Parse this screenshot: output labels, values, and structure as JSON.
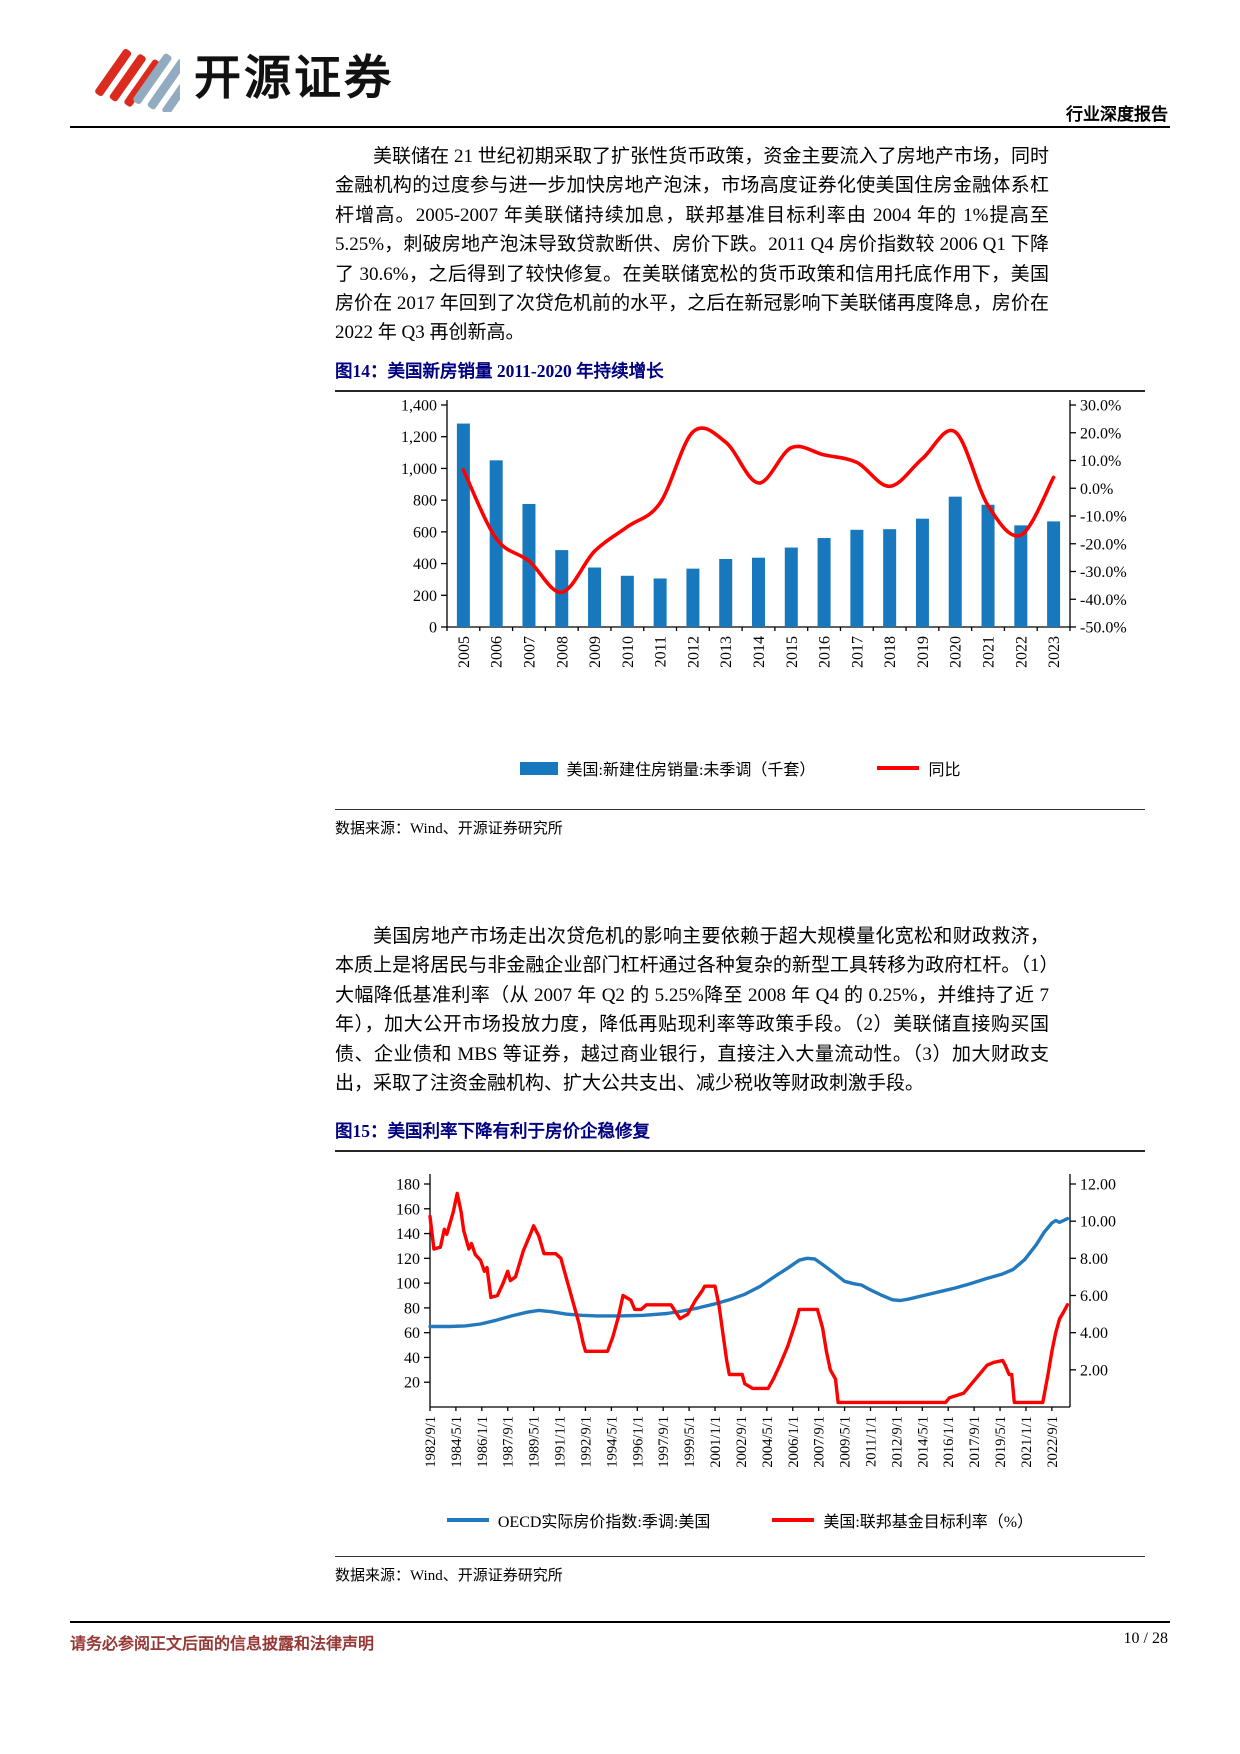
{
  "header": {
    "brand": "开源证券",
    "report_type": "行业深度报告"
  },
  "paragraph1": "美联储在 21 世纪初期采取了扩张性货币政策，资金主要流入了房地产市场，同时金融机构的过度参与进一步加快房地产泡沫，市场高度证券化使美国住房金融体系杠杆增高。2005-2007 年美联储持续加息，联邦基准目标利率由 2004 年的 1%提高至 5.25%，刺破房地产泡沫导致贷款断供、房价下跌。2011 Q4 房价指数较 2006 Q1 下降了 30.6%，之后得到了较快修复。在美联储宽松的货币政策和信用托底作用下，美国房价在 2017 年回到了次贷危机前的水平，之后在新冠影响下美联储再度降息，房价在 2022 年 Q3 再创新高。",
  "paragraph2": "美国房地产市场走出次贷危机的影响主要依赖于超大规模量化宽松和财政救济，本质上是将居民与非金融企业部门杠杆通过各种复杂的新型工具转移为政府杠杆。（1）大幅降低基准利率（从 2007 年 Q2 的 5.25%降至 2008 年 Q4 的 0.25%，并维持了近 7 年），加大公开市场投放力度，降低再贴现利率等政策手段。（2）美联储直接购买国债、企业债和 MBS 等证券，越过商业银行，直接注入大量流动性。（3）加大财政支出，采取了注资金融机构、扩大公共支出、减少税收等财政刺激手段。",
  "figure14": {
    "title_full": "图14：美国新房销量 2011-2020 年持续增长",
    "source": "数据来源：Wind、开源证券研究所"
  },
  "figure15": {
    "title_full": "图15：美国利率下降有利于房价企稳修复",
    "source": "数据来源：Wind、开源证券研究所"
  },
  "footer": {
    "disclaimer": "请务必参阅正文后面的信息披露和法律声明",
    "page": "10 / 28"
  },
  "colors": {
    "bar_blue": "#1878BE",
    "line_blue": "#2379BD",
    "line_red": "#FF0000",
    "title_navy": "#000080",
    "footer_red": "#953735",
    "logo_red": "#DB2B1E",
    "logo_gray": "#92ABC0"
  },
  "chart_data": [
    {
      "type": "bar",
      "title": "美国新房销量 2011-2020 年持续增长",
      "categories": [
        "2005",
        "2006",
        "2007",
        "2008",
        "2009",
        "2010",
        "2011",
        "2012",
        "2013",
        "2014",
        "2015",
        "2016",
        "2017",
        "2018",
        "2019",
        "2020",
        "2021",
        "2022",
        "2023"
      ],
      "series": [
        {
          "name": "美国:新建住房销量:未季调（千套）",
          "type": "bar",
          "axis": "left",
          "values": [
            1283,
            1051,
            776,
            485,
            375,
            323,
            306,
            368,
            429,
            437,
            501,
            561,
            613,
            617,
            683,
            822,
            771,
            641,
            666
          ]
        },
        {
          "name": "同比",
          "type": "line",
          "axis": "right",
          "values": [
            6.6,
            -18.1,
            -26.2,
            -37.5,
            -22.7,
            -13.9,
            -5.3,
            20.3,
            16.6,
            1.9,
            14.6,
            12.0,
            9.3,
            0.7,
            10.7,
            20.3,
            -6.2,
            -16.9,
            3.9
          ]
        }
      ],
      "left_axis": {
        "min": 0,
        "max": 1400,
        "labels": [
          "0",
          "200",
          "400",
          "600",
          "800",
          "1,000",
          "1,200",
          "1,400"
        ]
      },
      "right_axis": {
        "min": -50,
        "max": 30,
        "labels": [
          "-50.0%",
          "-40.0%",
          "-30.0%",
          "-20.0%",
          "-10.0%",
          "0.0%",
          "10.0%",
          "20.0%",
          "30.0%"
        ]
      },
      "grid": false,
      "legend_position": "bottom"
    },
    {
      "type": "line",
      "title": "美国利率下降有利于房价企稳修复",
      "x_tick_labels": [
        "1982/9/1",
        "1984/5/1",
        "1986/1/1",
        "1987/9/1",
        "1989/5/1",
        "1991/1/1",
        "1992/9/1",
        "1994/5/1",
        "1996/1/1",
        "1997/9/1",
        "1999/5/1",
        "2001/1/1",
        "2002/9/1",
        "2004/5/1",
        "2006/1/1",
        "2007/9/1",
        "2009/5/1",
        "2011/1/1",
        "2012/9/1",
        "2014/5/1",
        "2016/1/1",
        "2017/9/1",
        "2019/5/1",
        "2021/1/1",
        "2022/9/1"
      ],
      "x_months_per_tick": 20,
      "x_total_months": 494,
      "left_axis": {
        "min": 0,
        "max": 180,
        "labels": [
          "20",
          "40",
          "60",
          "80",
          "100",
          "120",
          "140",
          "160",
          "180"
        ]
      },
      "right_axis": {
        "min": 0,
        "max": 12,
        "labels": [
          "2.00",
          "4.00",
          "6.00",
          "8.00",
          "10.00",
          "12.00"
        ]
      },
      "series": [
        {
          "name": "OECD实际房价指数:季调:美国",
          "axis": "left",
          "points": [
            [
              0,
              65
            ],
            [
              15,
              65
            ],
            [
              27,
              65.5
            ],
            [
              39,
              67
            ],
            [
              51,
              70
            ],
            [
              63,
              73.5
            ],
            [
              75,
              76.5
            ],
            [
              84,
              78
            ],
            [
              93,
              77
            ],
            [
              105,
              75
            ],
            [
              117,
              74
            ],
            [
              129,
              73.5
            ],
            [
              147,
              73.5
            ],
            [
              165,
              74
            ],
            [
              183,
              75.5
            ],
            [
              195,
              77.5
            ],
            [
              207,
              80
            ],
            [
              219,
              83
            ],
            [
              231,
              86.5
            ],
            [
              243,
              91
            ],
            [
              255,
              97.5
            ],
            [
              267,
              106
            ],
            [
              276,
              112
            ],
            [
              285,
              118.5
            ],
            [
              291,
              120
            ],
            [
              297,
              119.5
            ],
            [
              303,
              115
            ],
            [
              312,
              108
            ],
            [
              320,
              101.5
            ],
            [
              327,
              99.5
            ],
            [
              333,
              98.5
            ],
            [
              339,
              95
            ],
            [
              348,
              90.5
            ],
            [
              357,
              86.5
            ],
            [
              363,
              86
            ],
            [
              369,
              87
            ],
            [
              381,
              90
            ],
            [
              393,
              93
            ],
            [
              405,
              96
            ],
            [
              417,
              99.5
            ],
            [
              429,
              103.5
            ],
            [
              441,
              107
            ],
            [
              450,
              111
            ],
            [
              459,
              119
            ],
            [
              468,
              131
            ],
            [
              474,
              141
            ],
            [
              480,
              148.5
            ],
            [
              483,
              150.5
            ],
            [
              486,
              149
            ],
            [
              489,
              150.5
            ],
            [
              492,
              152
            ]
          ]
        },
        {
          "name": "美国:联邦基金目标利率（%）",
          "axis": "right",
          "points": [
            [
              0,
              10.25
            ],
            [
              3,
              8.5
            ],
            [
              8,
              8.6
            ],
            [
              11,
              9.56
            ],
            [
              13,
              9.3
            ],
            [
              18,
              10.5
            ],
            [
              21,
              11.5
            ],
            [
              24,
              10.5
            ],
            [
              26,
              9.5
            ],
            [
              30,
              8.5
            ],
            [
              32,
              8.8
            ],
            [
              35,
              8.2
            ],
            [
              39,
              7.9
            ],
            [
              42,
              7.3
            ],
            [
              44,
              7.5
            ],
            [
              47,
              5.9
            ],
            [
              52,
              6.0
            ],
            [
              56,
              6.6
            ],
            [
              60,
              7.3
            ],
            [
              62,
              6.8
            ],
            [
              66,
              7.0
            ],
            [
              72,
              8.4
            ],
            [
              78,
              9.4
            ],
            [
              80,
              9.75
            ],
            [
              84,
              9.2
            ],
            [
              88,
              8.25
            ],
            [
              97,
              8.25
            ],
            [
              101,
              8.0
            ],
            [
              103,
              7.5
            ],
            [
              107,
              6.5
            ],
            [
              111,
              5.5
            ],
            [
              115,
              4.5
            ],
            [
              118,
              3.5
            ],
            [
              120,
              3.0
            ],
            [
              137,
              3.0
            ],
            [
              141,
              3.75
            ],
            [
              145,
              4.75
            ],
            [
              149,
              6.0
            ],
            [
              155,
              5.75
            ],
            [
              158,
              5.25
            ],
            [
              163,
              5.25
            ],
            [
              167,
              5.5
            ],
            [
              186,
              5.5
            ],
            [
              193,
              4.75
            ],
            [
              199,
              5.0
            ],
            [
              205,
              5.75
            ],
            [
              210,
              6.25
            ],
            [
              212,
              6.5
            ],
            [
              220,
              6.5
            ],
            [
              223,
              5.5
            ],
            [
              226,
              4.0
            ],
            [
              229,
              2.5
            ],
            [
              231,
              1.75
            ],
            [
              241,
              1.75
            ],
            [
              243,
              1.25
            ],
            [
              249,
              1.0
            ],
            [
              261,
              1.0
            ],
            [
              265,
              1.5
            ],
            [
              270,
              2.25
            ],
            [
              276,
              3.25
            ],
            [
              282,
              4.5
            ],
            [
              285,
              5.25
            ],
            [
              299,
              5.25
            ],
            [
              301,
              4.75
            ],
            [
              303,
              4.25
            ],
            [
              306,
              3.0
            ],
            [
              309,
              2.0
            ],
            [
              313,
              1.5
            ],
            [
              315,
              0.25
            ],
            [
              398,
              0.25
            ],
            [
              401,
              0.5
            ],
            [
              412,
              0.75
            ],
            [
              418,
              1.25
            ],
            [
              424,
              1.75
            ],
            [
              430,
              2.25
            ],
            [
              435,
              2.4
            ],
            [
              442,
              2.5
            ],
            [
              444,
              2.25
            ],
            [
              447,
              1.75
            ],
            [
              449,
              1.75
            ],
            [
              451,
              0.25
            ],
            [
              473,
              0.25
            ],
            [
              477,
              1.75
            ],
            [
              480,
              3.0
            ],
            [
              483,
              4.0
            ],
            [
              486,
              4.75
            ],
            [
              489,
              5.1
            ],
            [
              492,
              5.5
            ]
          ]
        }
      ],
      "grid": false,
      "legend_position": "bottom"
    }
  ]
}
